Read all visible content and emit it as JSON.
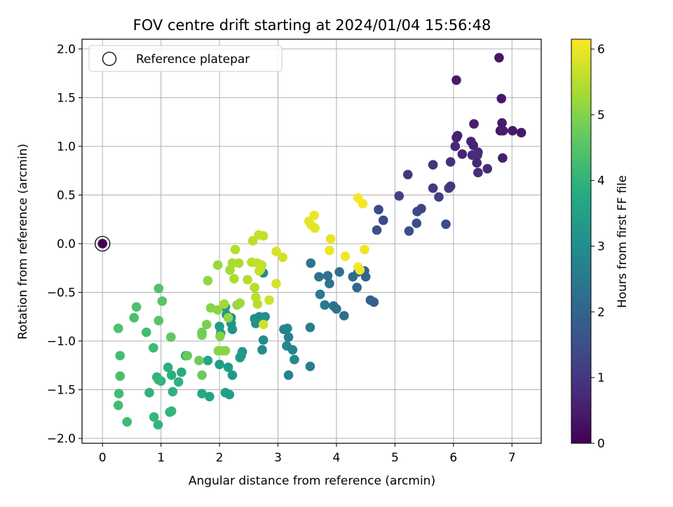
{
  "chart_data": {
    "type": "scatter",
    "title": "FOV centre drift starting at 2024/01/04 15:56:48",
    "xlabel": "Angular distance from reference (arcmin)",
    "ylabel": "Rotation from reference (arcmin)",
    "xlim": [
      -0.35,
      7.5
    ],
    "ylim": [
      -2.05,
      2.1
    ],
    "xticks": [
      0,
      1,
      2,
      3,
      4,
      5,
      6,
      7
    ],
    "yticks": [
      -2.0,
      -1.5,
      -1.0,
      -0.5,
      0.0,
      0.5,
      1.0,
      1.5,
      2.0
    ],
    "grid": true,
    "legend": {
      "placement": "upper-left",
      "entries": [
        "Reference platepar"
      ]
    },
    "reference_point": {
      "x": 0,
      "y": 0,
      "hours": 0
    },
    "colorbar": {
      "label": "Hours from first FF file",
      "range": [
        0,
        6.15
      ],
      "ticks": [
        0,
        1,
        2,
        3,
        4,
        5,
        6
      ],
      "colormap": "viridis"
    },
    "points": [
      [
        6.78,
        1.91,
        0.35
      ],
      [
        6.05,
        1.68,
        0.45
      ],
      [
        6.82,
        1.49,
        0.4
      ],
      [
        6.35,
        1.23,
        0.5
      ],
      [
        6.83,
        1.24,
        0.45
      ],
      [
        6.8,
        1.16,
        0.4
      ],
      [
        6.85,
        1.16,
        0.5
      ],
      [
        7.01,
        1.16,
        0.45
      ],
      [
        7.16,
        1.14,
        0.4
      ],
      [
        6.07,
        1.11,
        0.6
      ],
      [
        6.05,
        1.09,
        0.55
      ],
      [
        6.3,
        1.05,
        0.65
      ],
      [
        6.34,
        1.01,
        0.6
      ],
      [
        6.03,
        1.0,
        0.7
      ],
      [
        6.15,
        0.92,
        0.65
      ],
      [
        6.32,
        0.91,
        0.75
      ],
      [
        6.42,
        0.94,
        0.7
      ],
      [
        6.41,
        0.91,
        0.8
      ],
      [
        6.4,
        0.83,
        0.7
      ],
      [
        6.84,
        0.88,
        0.5
      ],
      [
        5.95,
        0.84,
        0.85
      ],
      [
        5.65,
        0.81,
        0.9
      ],
      [
        6.58,
        0.77,
        0.75
      ],
      [
        6.42,
        0.73,
        0.8
      ],
      [
        5.22,
        0.71,
        1.0
      ],
      [
        5.65,
        0.57,
        1.05
      ],
      [
        5.92,
        0.57,
        1.1
      ],
      [
        5.95,
        0.59,
        1.0
      ],
      [
        5.75,
        0.48,
        1.15
      ],
      [
        5.07,
        0.49,
        1.2
      ],
      [
        5.45,
        0.36,
        1.25
      ],
      [
        5.38,
        0.33,
        1.3
      ],
      [
        4.72,
        0.35,
        1.4
      ],
      [
        4.8,
        0.24,
        1.35
      ],
      [
        5.37,
        0.21,
        1.45
      ],
      [
        5.24,
        0.13,
        1.5
      ],
      [
        5.87,
        0.2,
        1.4
      ],
      [
        4.69,
        0.14,
        1.55
      ],
      [
        3.56,
        -0.2,
        2.4
      ],
      [
        4.05,
        -0.29,
        2.2
      ],
      [
        4.37,
        -0.29,
        2.0
      ],
      [
        4.48,
        -0.28,
        1.9
      ],
      [
        4.5,
        -0.34,
        1.95
      ],
      [
        3.7,
        -0.34,
        2.3
      ],
      [
        3.85,
        -0.33,
        2.25
      ],
      [
        4.28,
        -0.34,
        2.1
      ],
      [
        3.88,
        -0.41,
        2.35
      ],
      [
        4.35,
        -0.45,
        2.05
      ],
      [
        3.72,
        -0.52,
        2.5
      ],
      [
        4.58,
        -0.58,
        1.9
      ],
      [
        4.64,
        -0.6,
        1.85
      ],
      [
        3.8,
        -0.63,
        2.45
      ],
      [
        3.95,
        -0.64,
        2.3
      ],
      [
        4.0,
        -0.67,
        2.25
      ],
      [
        4.13,
        -0.74,
        2.2
      ],
      [
        3.55,
        -0.86,
        2.6
      ],
      [
        3.1,
        -0.88,
        2.8
      ],
      [
        3.16,
        -0.87,
        2.75
      ],
      [
        3.18,
        -0.96,
        2.7
      ],
      [
        3.15,
        -1.05,
        2.85
      ],
      [
        3.25,
        -1.09,
        2.8
      ],
      [
        3.28,
        -1.19,
        2.9
      ],
      [
        3.55,
        -1.26,
        2.6
      ],
      [
        3.18,
        -1.35,
        2.7
      ],
      [
        2.75,
        -0.3,
        2.9
      ],
      [
        2.6,
        -0.77,
        3.0
      ],
      [
        2.68,
        -0.75,
        2.95
      ],
      [
        2.78,
        -0.75,
        3.05
      ],
      [
        2.62,
        -0.82,
        3.1
      ],
      [
        2.75,
        -0.99,
        3.0
      ],
      [
        2.73,
        -1.09,
        2.95
      ],
      [
        2.2,
        -0.76,
        3.2
      ],
      [
        2.12,
        -0.73,
        3.3
      ],
      [
        2.1,
        -0.65,
        3.25
      ],
      [
        2.22,
        -0.88,
        3.15
      ],
      [
        2.2,
        -0.82,
        3.2
      ],
      [
        2.0,
        -0.85,
        3.35
      ],
      [
        2.02,
        -0.92,
        3.4
      ],
      [
        2.39,
        -1.11,
        3.3
      ],
      [
        2.37,
        -1.15,
        3.25
      ],
      [
        2.35,
        -1.17,
        3.35
      ],
      [
        2.15,
        -1.27,
        3.4
      ],
      [
        2.22,
        -1.35,
        3.3
      ],
      [
        2.0,
        -1.24,
        3.45
      ],
      [
        2.1,
        -1.53,
        3.5
      ],
      [
        2.17,
        -1.55,
        3.45
      ],
      [
        1.8,
        -1.2,
        3.6
      ],
      [
        1.83,
        -1.57,
        3.55
      ],
      [
        1.7,
        -1.54,
        3.7
      ],
      [
        1.35,
        -1.32,
        3.75
      ],
      [
        1.42,
        -1.15,
        3.8
      ],
      [
        1.18,
        -1.35,
        3.85
      ],
      [
        1.3,
        -1.42,
        3.9
      ],
      [
        1.12,
        -1.27,
        3.85
      ],
      [
        1.0,
        -1.41,
        3.9
      ],
      [
        0.93,
        -1.37,
        3.95
      ],
      [
        0.8,
        -1.53,
        4.0
      ],
      [
        1.2,
        -1.52,
        3.9
      ],
      [
        1.18,
        -1.72,
        4.0
      ],
      [
        1.15,
        -1.73,
        4.05
      ],
      [
        0.88,
        -1.78,
        4.1
      ],
      [
        0.95,
        -1.86,
        4.05
      ],
      [
        0.42,
        -1.83,
        4.2
      ],
      [
        0.27,
        -1.66,
        4.3
      ],
      [
        0.28,
        -1.54,
        4.25
      ],
      [
        0.3,
        -1.36,
        4.35
      ],
      [
        0.3,
        -1.15,
        4.3
      ],
      [
        0.27,
        -0.87,
        4.4
      ],
      [
        0.87,
        -1.07,
        4.2
      ],
      [
        0.96,
        -1.4,
        4.1
      ],
      [
        0.75,
        -0.91,
        4.3
      ],
      [
        0.54,
        -0.76,
        4.35
      ],
      [
        0.58,
        -0.65,
        4.4
      ],
      [
        0.96,
        -0.79,
        4.5
      ],
      [
        1.02,
        -0.59,
        4.5
      ],
      [
        0.96,
        -0.46,
        4.4
      ],
      [
        1.17,
        -0.96,
        4.6
      ],
      [
        1.45,
        -1.15,
        4.7
      ],
      [
        1.65,
        -1.2,
        4.8
      ],
      [
        1.7,
        -1.35,
        4.75
      ],
      [
        1.7,
        -0.94,
        4.85
      ],
      [
        1.7,
        -0.91,
        4.8
      ],
      [
        1.78,
        -0.83,
        4.9
      ],
      [
        1.85,
        -0.66,
        5.0
      ],
      [
        1.97,
        -0.68,
        5.1
      ],
      [
        2.01,
        -0.95,
        5.0
      ],
      [
        2.05,
        -1.1,
        5.1
      ],
      [
        2.1,
        -1.1,
        5.05
      ],
      [
        1.98,
        -1.1,
        5.05
      ],
      [
        1.8,
        -0.38,
        5.1
      ],
      [
        1.97,
        -0.22,
        5.2
      ],
      [
        2.15,
        -0.76,
        5.15
      ],
      [
        2.3,
        -0.63,
        5.2
      ],
      [
        2.35,
        -0.61,
        5.25
      ],
      [
        2.08,
        -0.62,
        5.3
      ],
      [
        2.18,
        -0.27,
        5.3
      ],
      [
        2.22,
        -0.2,
        5.35
      ],
      [
        2.25,
        -0.36,
        5.4
      ],
      [
        2.27,
        -0.06,
        5.45
      ],
      [
        2.33,
        -0.2,
        5.4
      ],
      [
        2.48,
        -0.37,
        5.45
      ],
      [
        2.55,
        -0.19,
        5.5
      ],
      [
        2.6,
        -0.45,
        5.45
      ],
      [
        2.62,
        -0.55,
        5.55
      ],
      [
        2.65,
        -0.62,
        5.5
      ],
      [
        2.57,
        0.03,
        5.55
      ],
      [
        2.67,
        0.09,
        5.6
      ],
      [
        2.75,
        0.08,
        5.6
      ],
      [
        2.65,
        -0.2,
        5.6
      ],
      [
        2.68,
        -0.28,
        5.65
      ],
      [
        2.72,
        -0.22,
        5.55
      ],
      [
        2.7,
        -0.26,
        5.65
      ],
      [
        2.75,
        -0.83,
        5.7
      ],
      [
        2.85,
        -0.58,
        5.7
      ],
      [
        2.97,
        -0.41,
        5.75
      ],
      [
        2.97,
        -0.08,
        5.8
      ],
      [
        3.08,
        -0.14,
        5.75
      ],
      [
        3.53,
        0.23,
        5.9
      ],
      [
        3.57,
        0.19,
        5.95
      ],
      [
        3.62,
        0.29,
        6.0
      ],
      [
        3.63,
        0.16,
        5.9
      ],
      [
        3.9,
        0.05,
        5.95
      ],
      [
        3.88,
        -0.07,
        6.0
      ],
      [
        4.15,
        -0.13,
        6.05
      ],
      [
        4.37,
        0.47,
        6.1
      ],
      [
        4.45,
        0.41,
        6.05
      ],
      [
        4.37,
        -0.24,
        6.1
      ],
      [
        4.4,
        -0.27,
        6.0
      ],
      [
        4.48,
        -0.06,
        6.05
      ]
    ]
  }
}
